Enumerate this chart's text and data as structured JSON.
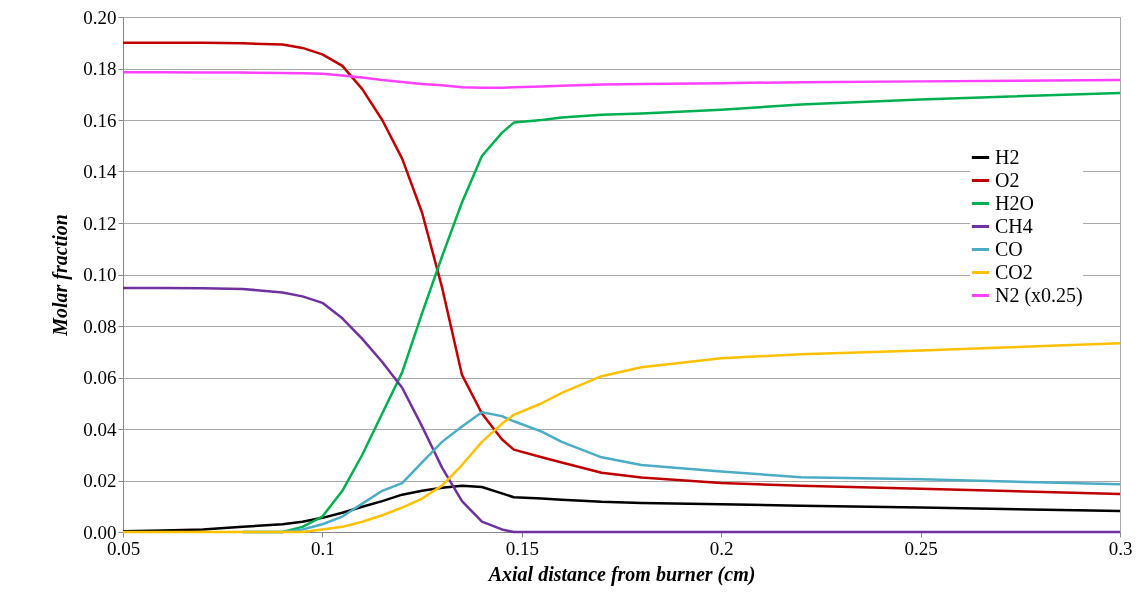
{
  "chart_data": {
    "type": "line",
    "xlabel": "Axial distance from burner (cm)",
    "ylabel": "Molar fraction",
    "x": [
      0.05,
      0.06,
      0.07,
      0.08,
      0.09,
      0.095,
      0.1,
      0.105,
      0.11,
      0.115,
      0.12,
      0.125,
      0.13,
      0.135,
      0.14,
      0.145,
      0.148,
      0.155,
      0.16,
      0.17,
      0.18,
      0.2,
      0.22,
      0.25,
      0.3
    ],
    "series": [
      {
        "name": "H2",
        "color": "#000000",
        "values": [
          0.0003,
          0.0006,
          0.001,
          0.002,
          0.003,
          0.004,
          0.0055,
          0.0075,
          0.0098,
          0.012,
          0.0145,
          0.016,
          0.0172,
          0.018,
          0.0175,
          0.015,
          0.0135,
          0.013,
          0.0125,
          0.0117,
          0.0113,
          0.0108,
          0.0102,
          0.0095,
          0.0082
        ]
      },
      {
        "name": "O2",
        "color": "#c00000",
        "values": [
          0.19,
          0.19,
          0.19,
          0.1898,
          0.1893,
          0.188,
          0.1855,
          0.181,
          0.172,
          0.16,
          0.145,
          0.124,
          0.095,
          0.061,
          0.046,
          0.036,
          0.032,
          0.029,
          0.027,
          0.023,
          0.0212,
          0.019,
          0.018,
          0.0168,
          0.0148
        ]
      },
      {
        "name": "H2O",
        "color": "#00b050",
        "values": [
          null,
          null,
          null,
          0,
          0,
          0.002,
          0.006,
          0.016,
          0.03,
          0.046,
          0.062,
          0.085,
          0.107,
          0.128,
          0.146,
          0.155,
          0.159,
          0.16,
          0.161,
          0.162,
          0.1625,
          0.164,
          0.166,
          0.168,
          0.1705
        ]
      },
      {
        "name": "CH4",
        "color": "#7030a0",
        "values": [
          0.0948,
          0.0948,
          0.0947,
          0.0944,
          0.093,
          0.0915,
          0.089,
          0.083,
          0.075,
          0.066,
          0.056,
          0.041,
          0.025,
          0.012,
          0.004,
          0.001,
          0,
          0,
          0,
          0,
          0,
          0,
          0,
          0,
          0
        ]
      },
      {
        "name": "CO",
        "color": "#4bacc6",
        "values": [
          null,
          null,
          null,
          0,
          0,
          0.001,
          0.003,
          0.006,
          0.011,
          0.016,
          0.019,
          0.027,
          0.035,
          0.041,
          0.0465,
          0.045,
          0.043,
          0.039,
          0.035,
          0.029,
          0.026,
          0.0235,
          0.0213,
          0.0205,
          0.0185
        ]
      },
      {
        "name": "CO2",
        "color": "#ffc000",
        "values": [
          0,
          0,
          0,
          0,
          0,
          0,
          0.001,
          0.002,
          0.004,
          0.0065,
          0.0095,
          0.013,
          0.018,
          0.026,
          0.035,
          0.042,
          0.0455,
          0.05,
          0.054,
          0.0605,
          0.064,
          0.0675,
          0.069,
          0.0705,
          0.0733
        ]
      },
      {
        "name": "N2 (x0.25)",
        "color": "#ff40ff",
        "values": [
          0.1785,
          0.1785,
          0.1784,
          0.1784,
          0.1783,
          0.1782,
          0.178,
          0.1773,
          0.1765,
          0.1755,
          0.1748,
          0.174,
          0.1735,
          0.1727,
          0.1725,
          0.1725,
          0.1727,
          0.173,
          0.1733,
          0.1738,
          0.174,
          0.1743,
          0.1747,
          0.175,
          0.1755
        ]
      }
    ],
    "xlim": [
      0.05,
      0.3
    ],
    "xticks": [
      0.05,
      0.1,
      0.15,
      0.2,
      0.25,
      0.3
    ],
    "ylim": [
      0,
      0.2
    ],
    "yticks": [
      {
        "value": 0,
        "label": "0.00"
      },
      {
        "value": 0.02,
        "label": "0.02"
      },
      {
        "value": 0.04,
        "label": "0.04"
      },
      {
        "value": 0.06,
        "label": "0.06"
      },
      {
        "value": 0.08,
        "label": "0.08"
      },
      {
        "value": 0.1,
        "label": "0.10"
      },
      {
        "value": 0.12,
        "label": "0.12"
      },
      {
        "value": 0.14,
        "label": "0.14"
      },
      {
        "value": 0.16,
        "label": "0.16"
      },
      {
        "value": 0.18,
        "label": "0.18"
      },
      {
        "value": 0.2,
        "label": "0.20"
      }
    ],
    "grid": "y",
    "legend": "right",
    "marker": "none",
    "line_style": "solid"
  }
}
